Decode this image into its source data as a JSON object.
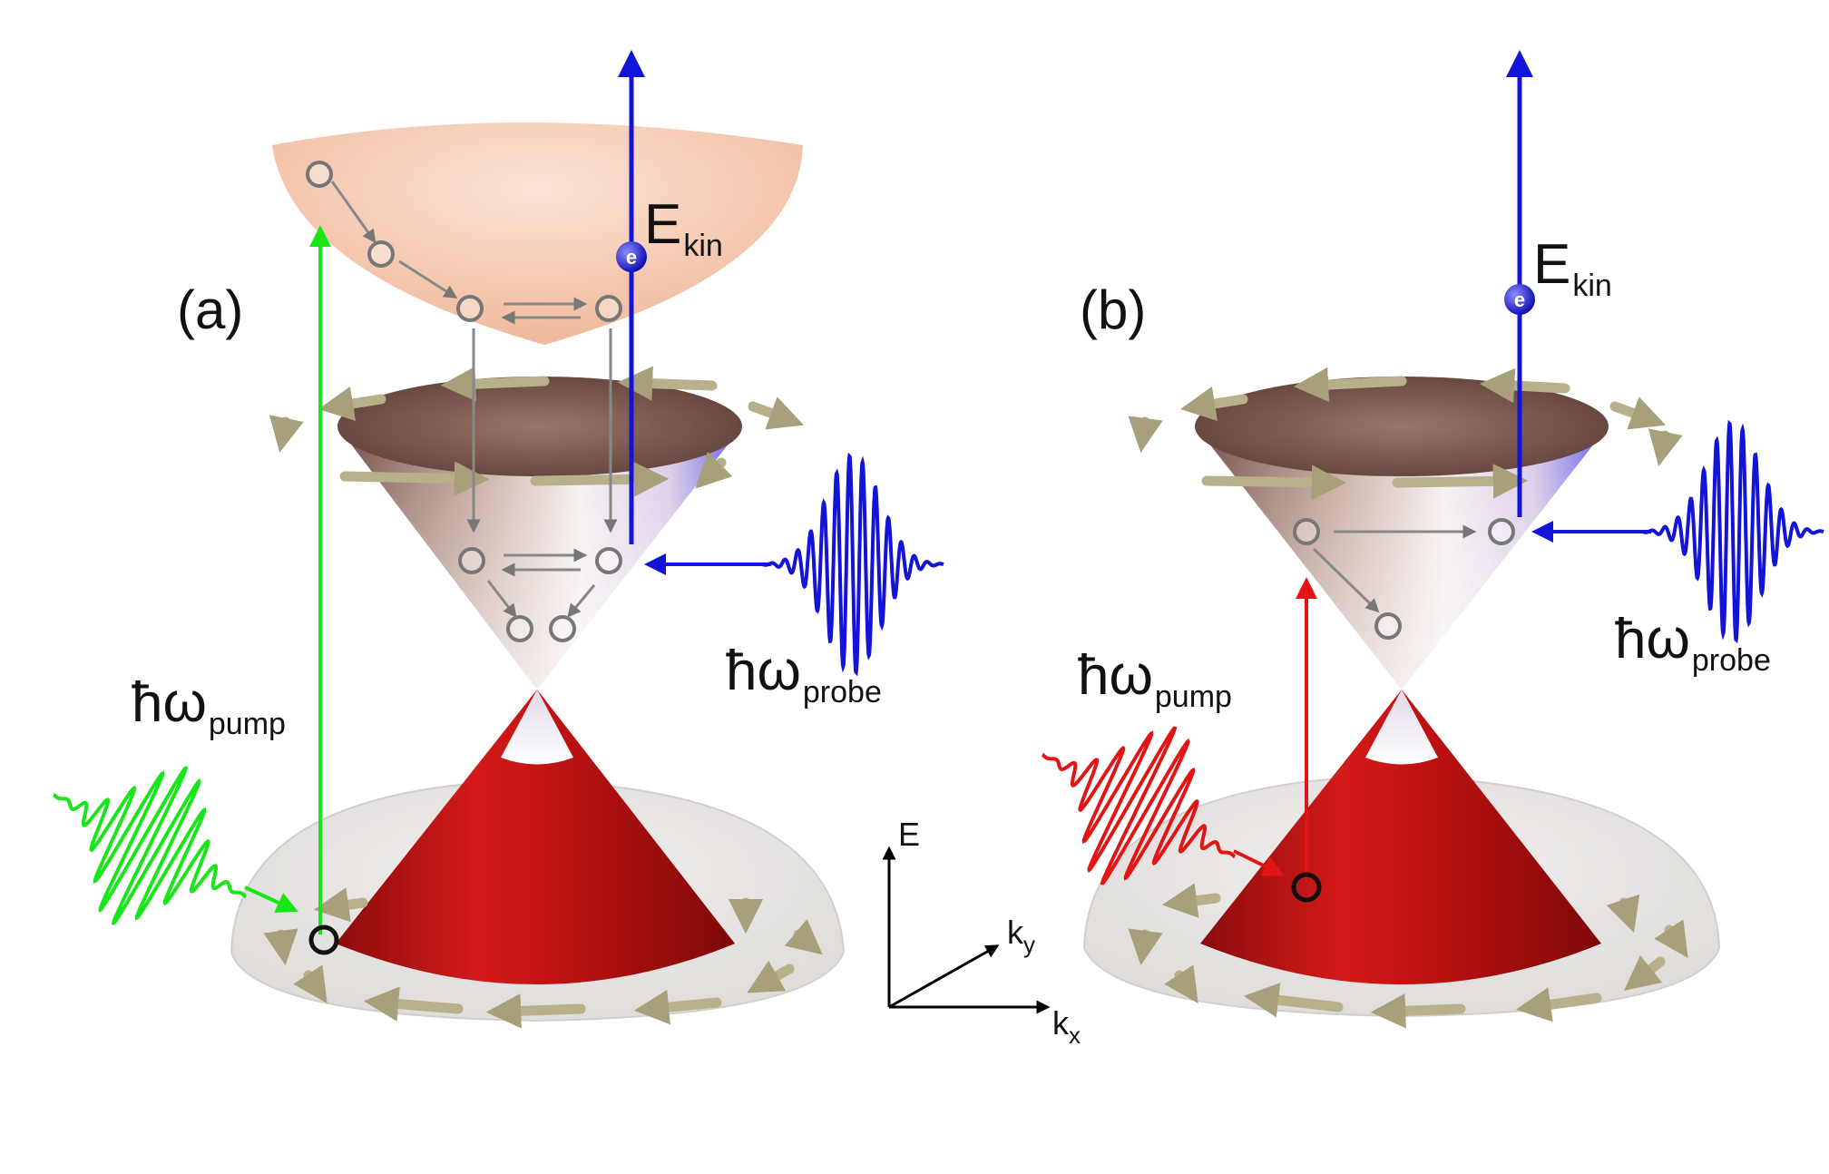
{
  "panels": [
    {
      "label": "(a)",
      "e_kin": {
        "main": "E",
        "sub": "kin"
      },
      "pump": {
        "main": "ħω",
        "sub": "pump",
        "color": "#19e619"
      },
      "probe": {
        "main": "ħω",
        "sub": "probe",
        "color": "#1414d8"
      },
      "electron": "e"
    },
    {
      "label": "(b)",
      "e_kin": {
        "main": "E",
        "sub": "kin"
      },
      "pump": {
        "main": "ħω",
        "sub": "pump",
        "color": "#e31414"
      },
      "probe": {
        "main": "ħω",
        "sub": "probe",
        "color": "#1414d8"
      },
      "electron": "e"
    }
  ],
  "axes": {
    "e": "E",
    "ky": {
      "main": "k",
      "sub": "y"
    },
    "kx": {
      "main": "k",
      "sub": "x"
    }
  },
  "colors": {
    "upper_cone_top": "#7a5548",
    "lower_cone": "#c41010",
    "bulk_conduction": "#f6c7ad",
    "spin_arrow": "#b7b08a",
    "probe_blue": "#1414d8"
  }
}
